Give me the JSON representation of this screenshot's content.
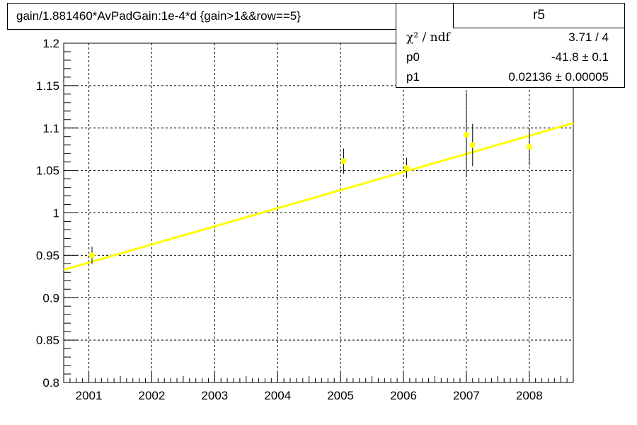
{
  "title": "gain/1.881460*AvPadGain:1e-4*d  {gain>1&&row==5}",
  "stats": {
    "name": "r5",
    "rows": [
      {
        "key": "χ² / ndf",
        "value": "3.71 / 4"
      },
      {
        "key": "p0",
        "value": "-41.8 ± 0.1"
      },
      {
        "key": "p1",
        "value": "0.02136  ± 0.00005"
      }
    ]
  },
  "colors": {
    "marker": "#ffff00",
    "fit": "#ffff00",
    "axis": "#000000",
    "grid": "#000000"
  },
  "chart_data": {
    "type": "scatter",
    "grid": true,
    "xlim": [
      2000.6,
      2008.7
    ],
    "ylim": [
      0.8,
      1.2
    ],
    "x_ticks": [
      "2001",
      "2002",
      "2003",
      "2004",
      "2005",
      "2006",
      "2007",
      "2008"
    ],
    "y_ticks": [
      "0.8",
      "0.85",
      "0.9",
      "0.95",
      "1",
      "1.05",
      "1.1",
      "1.15",
      "1.2"
    ],
    "points": [
      {
        "x": 2001.05,
        "y": 0.95,
        "err": 0.01
      },
      {
        "x": 2005.05,
        "y": 1.061,
        "err": 0.015
      },
      {
        "x": 2006.05,
        "y": 1.053,
        "err": 0.012
      },
      {
        "x": 2007.0,
        "y": 1.092,
        "err": 0.05
      },
      {
        "x": 2007.1,
        "y": 1.08,
        "err": 0.025
      },
      {
        "x": 2008.0,
        "y": 1.078,
        "err": 0.022
      }
    ],
    "fit": {
      "type": "linear",
      "p0": -41.8,
      "p1": 0.02136
    }
  }
}
